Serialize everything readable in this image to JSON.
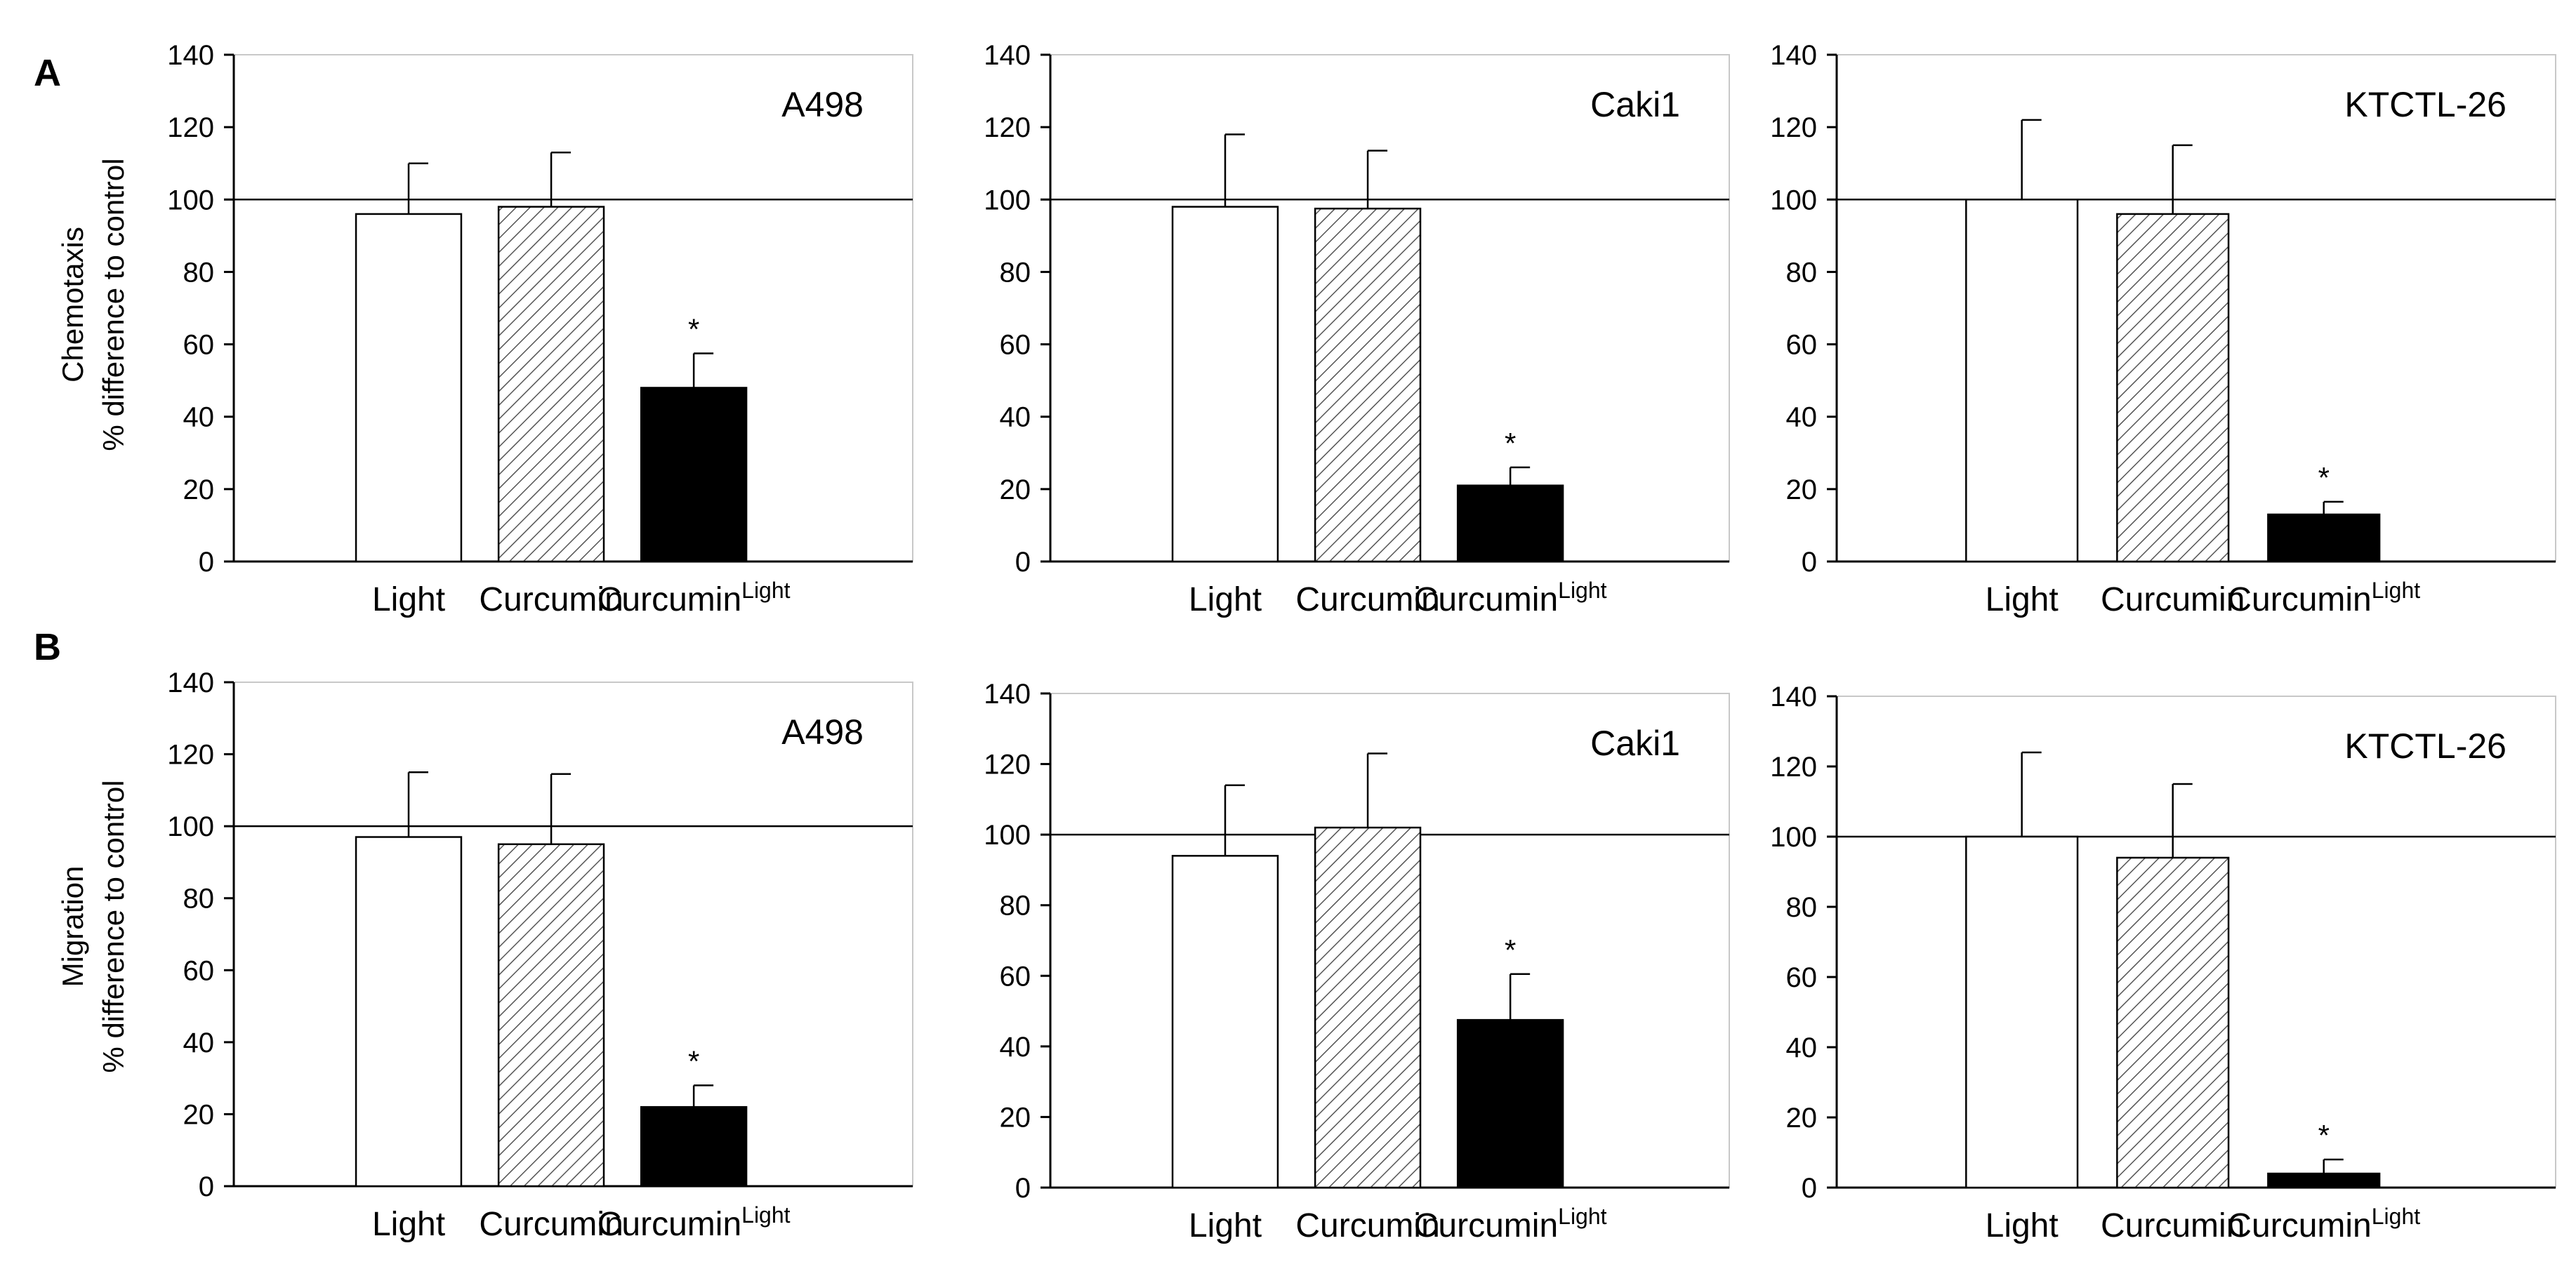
{
  "figure": {
    "row_labels": [
      "A",
      "B"
    ],
    "row_ylabels": [
      [
        "Chemotaxis",
        "% difference to control"
      ],
      [
        "Migration",
        "% difference to control"
      ]
    ]
  },
  "colors": {
    "light": "#ffffff",
    "curcumin_hatch": "#555555",
    "curcumin_light": "#000000",
    "axis": "#000000"
  },
  "chart_data": [
    {
      "type": "bar",
      "row": "A",
      "title": "A498",
      "ylabel": "Chemotaxis % difference to control",
      "categories": [
        "Light",
        "Curcumin",
        "Curcumin"
      ],
      "superscripts": [
        "",
        "",
        "Light"
      ],
      "values": [
        96,
        98,
        48
      ],
      "errors": [
        14,
        15,
        9.5
      ],
      "significant": [
        false,
        false,
        true
      ],
      "reference_line": 100,
      "ylim": [
        0,
        140
      ],
      "yticks": [
        0,
        20,
        40,
        60,
        80,
        100,
        120,
        140
      ]
    },
    {
      "type": "bar",
      "row": "A",
      "title": "Caki1",
      "ylabel": "Chemotaxis % difference to control",
      "categories": [
        "Light",
        "Curcumin",
        "Curcumin"
      ],
      "superscripts": [
        "",
        "",
        "Light"
      ],
      "values": [
        98,
        97.5,
        21
      ],
      "errors": [
        20,
        16,
        5
      ],
      "significant": [
        false,
        false,
        true
      ],
      "reference_line": 100,
      "ylim": [
        0,
        140
      ],
      "yticks": [
        0,
        20,
        40,
        60,
        80,
        100,
        120,
        140
      ]
    },
    {
      "type": "bar",
      "row": "A",
      "title": "KTCTL-26",
      "ylabel": "Chemotaxis % difference to control",
      "categories": [
        "Light",
        "Curcumin",
        "Curcumin"
      ],
      "superscripts": [
        "",
        "",
        "Light"
      ],
      "values": [
        100,
        96,
        13
      ],
      "errors": [
        22,
        19,
        3.5
      ],
      "significant": [
        false,
        false,
        true
      ],
      "reference_line": 100,
      "ylim": [
        0,
        140
      ],
      "yticks": [
        0,
        20,
        40,
        60,
        80,
        100,
        120,
        140
      ]
    },
    {
      "type": "bar",
      "row": "B",
      "title": "A498",
      "ylabel": "Migration % difference to control",
      "categories": [
        "Light",
        "Curcumin",
        "Curcumin"
      ],
      "superscripts": [
        "",
        "",
        "Light"
      ],
      "values": [
        97,
        95,
        22
      ],
      "errors": [
        18,
        19.5,
        6
      ],
      "significant": [
        false,
        false,
        true
      ],
      "reference_line": 100,
      "ylim": [
        0,
        140
      ],
      "yticks": [
        0,
        20,
        40,
        60,
        80,
        100,
        120,
        140
      ]
    },
    {
      "type": "bar",
      "row": "B",
      "title": "Caki1",
      "ylabel": "Migration % difference to control",
      "categories": [
        "Light",
        "Curcumin",
        "Curcumin"
      ],
      "superscripts": [
        "",
        "",
        "Light"
      ],
      "values": [
        94,
        102,
        47.5
      ],
      "errors": [
        20,
        21,
        13
      ],
      "significant": [
        false,
        false,
        true
      ],
      "reference_line": 100,
      "ylim": [
        0,
        140
      ],
      "yticks": [
        0,
        20,
        40,
        60,
        80,
        100,
        120,
        140
      ]
    },
    {
      "type": "bar",
      "row": "B",
      "title": "KTCTL-26",
      "ylabel": "Migration % difference to control",
      "categories": [
        "Light",
        "Curcumin",
        "Curcumin"
      ],
      "superscripts": [
        "",
        "",
        "Light"
      ],
      "values": [
        100,
        94,
        4
      ],
      "errors": [
        24,
        21,
        4
      ],
      "significant": [
        false,
        false,
        true
      ],
      "reference_line": 100,
      "ylim": [
        0,
        140
      ],
      "yticks": [
        0,
        20,
        40,
        60,
        80,
        100,
        120,
        140
      ]
    }
  ]
}
